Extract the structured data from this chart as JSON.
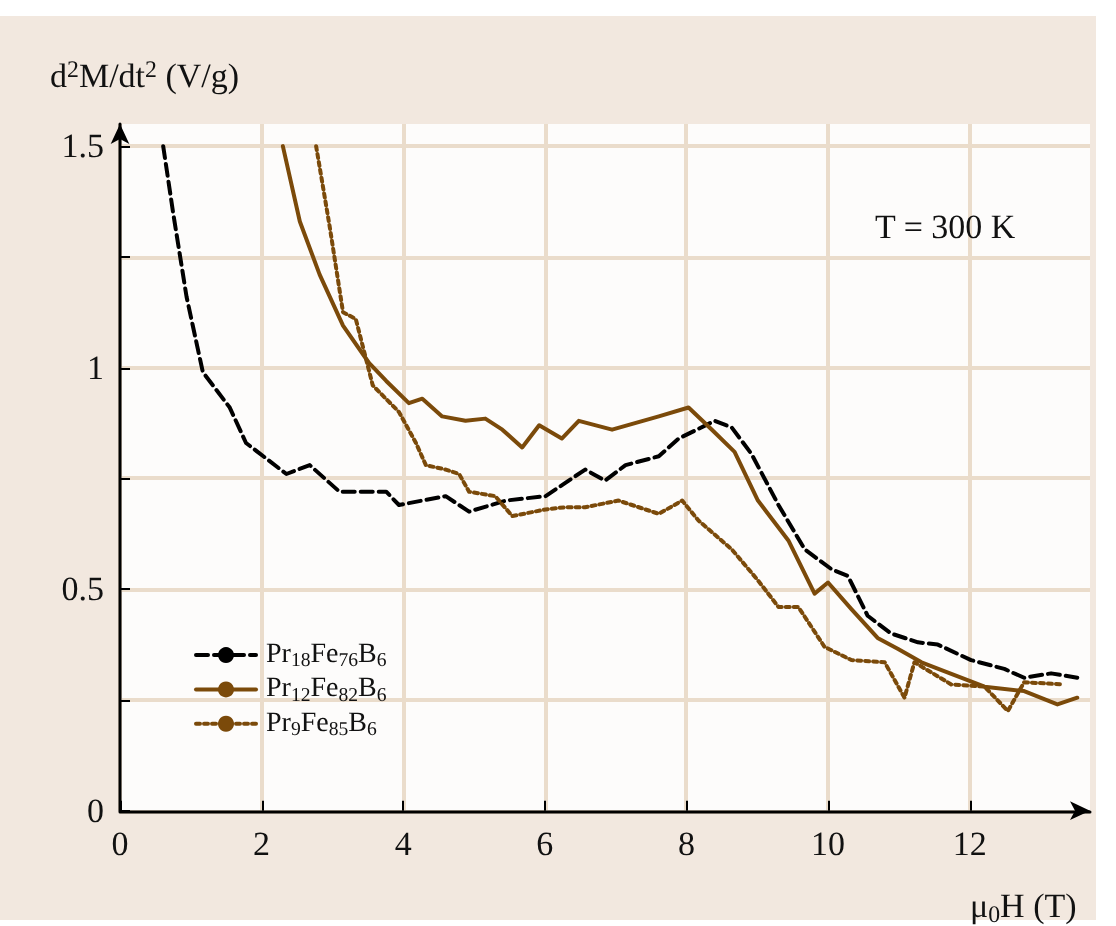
{
  "chart_data": {
    "type": "line",
    "xlabel": "μ$_{0}$H (T)",
    "ylabel": "d$^{2}$M/dt$^{2}$ (V/g)",
    "annotations": [
      "T = 300 K"
    ],
    "xlim": [
      0,
      13.7
    ],
    "ylim": [
      0,
      1.55
    ],
    "xticks": [
      0,
      2,
      4,
      6,
      8,
      10,
      12
    ],
    "yticks": [
      0,
      {
        "value": 0.25,
        "label": null
      },
      0.5,
      {
        "value": 0.75,
        "label": null
      },
      1.0,
      {
        "value": 1.25,
        "label": null
      },
      1.5
    ],
    "grid": true,
    "legend": "bottom left",
    "marker": "none",
    "series": [
      {
        "name": "Pr$_{18}$Fe$_{76}$B$_{6}$",
        "color": "#000000",
        "line_style": "dashed",
        "x": [
          0.61,
          0.75,
          0.94,
          1.17,
          1.55,
          1.78,
          2.35,
          2.68,
          3.1,
          3.76,
          3.94,
          4.6,
          4.93,
          5.45,
          6.01,
          6.29,
          6.57,
          6.85,
          7.14,
          7.61,
          7.89,
          8.4,
          8.64,
          8.92,
          9.3,
          9.67,
          10.05,
          10.28,
          10.56,
          10.89,
          11.27,
          11.55,
          12.02,
          12.49,
          12.77,
          13.15,
          13.52
        ],
        "values": [
          1.5,
          1.35,
          1.16,
          0.99,
          0.91,
          0.83,
          0.76,
          0.78,
          0.72,
          0.72,
          0.69,
          0.71,
          0.675,
          0.7,
          0.71,
          0.74,
          0.77,
          0.745,
          0.78,
          0.8,
          0.84,
          0.88,
          0.865,
          0.805,
          0.69,
          0.59,
          0.545,
          0.53,
          0.44,
          0.4,
          0.38,
          0.375,
          0.34,
          0.32,
          0.3,
          0.31,
          0.3
        ]
      },
      {
        "name": "Pr$_{12}$Fe$_{82}$B$_{6}$",
        "color": "#7b4a0a",
        "line_style": "solid",
        "x": [
          2.3,
          2.54,
          2.82,
          3.15,
          3.52,
          3.76,
          4.08,
          4.27,
          4.55,
          4.88,
          5.16,
          5.4,
          5.68,
          5.92,
          6.24,
          6.48,
          6.95,
          7.61,
          8.03,
          8.36,
          8.68,
          9.01,
          9.44,
          9.81,
          10.0,
          10.33,
          10.7,
          10.99,
          11.32,
          11.64,
          12.21,
          12.77,
          13.24,
          13.52
        ],
        "values": [
          1.5,
          1.33,
          1.21,
          1.095,
          1.01,
          0.97,
          0.92,
          0.93,
          0.89,
          0.88,
          0.885,
          0.86,
          0.82,
          0.87,
          0.84,
          0.88,
          0.86,
          0.89,
          0.91,
          0.86,
          0.81,
          0.7,
          0.61,
          0.49,
          0.515,
          0.455,
          0.39,
          0.365,
          0.335,
          0.315,
          0.28,
          0.27,
          0.24,
          0.255
        ]
      },
      {
        "name": "Pr$_{9}$Fe$_{85}$B$_{6}$",
        "color": "#7b4a0a",
        "line_style": "dotted",
        "x": [
          2.77,
          2.96,
          3.15,
          3.33,
          3.57,
          3.94,
          4.18,
          4.32,
          4.6,
          4.79,
          4.93,
          5.3,
          5.54,
          6.01,
          6.29,
          6.57,
          7.04,
          7.61,
          7.94,
          8.17,
          8.64,
          9.01,
          9.3,
          9.58,
          9.95,
          10.33,
          10.8,
          11.08,
          11.22,
          11.74,
          12.21,
          12.54,
          12.77,
          13.33
        ],
        "values": [
          1.5,
          1.32,
          1.125,
          1.11,
          0.96,
          0.9,
          0.83,
          0.78,
          0.77,
          0.76,
          0.72,
          0.71,
          0.665,
          0.68,
          0.685,
          0.685,
          0.7,
          0.67,
          0.7,
          0.655,
          0.59,
          0.52,
          0.46,
          0.46,
          0.37,
          0.34,
          0.335,
          0.255,
          0.335,
          0.285,
          0.28,
          0.225,
          0.29,
          0.285
        ]
      }
    ]
  }
}
